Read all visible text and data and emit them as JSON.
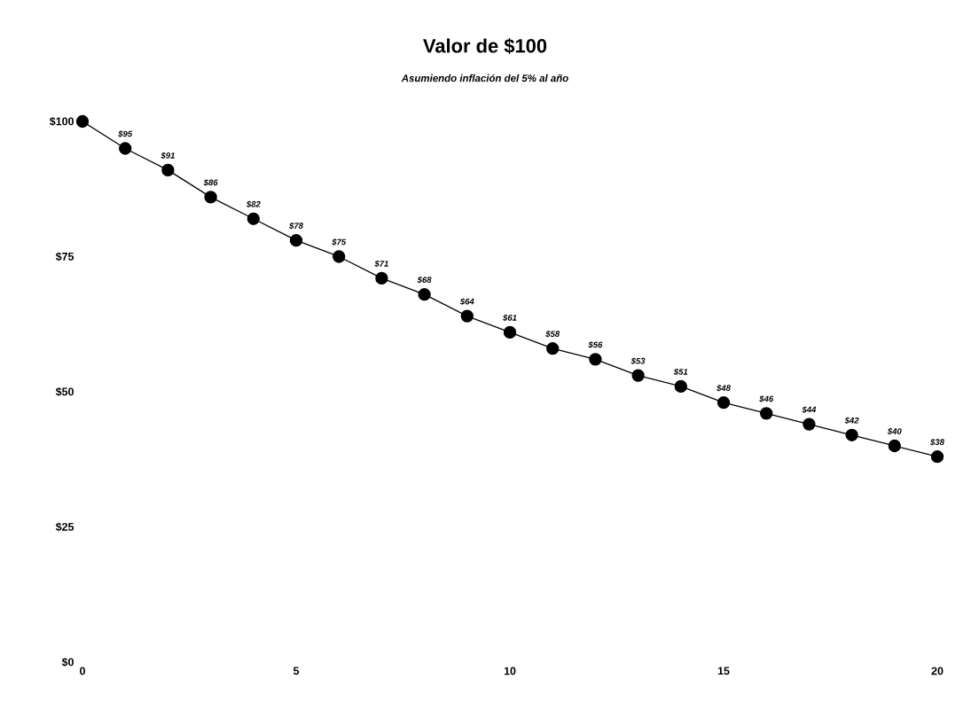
{
  "chart_data": {
    "type": "line",
    "title": "Valor de $100",
    "subtitle": "Asumiendo inflación del 5% al año",
    "x": [
      0,
      1,
      2,
      3,
      4,
      5,
      6,
      7,
      8,
      9,
      10,
      11,
      12,
      13,
      14,
      15,
      16,
      17,
      18,
      19,
      20
    ],
    "series": [
      {
        "color": "#000000",
        "values": [
          100,
          95,
          91,
          86,
          82,
          78,
          75,
          71,
          68,
          64,
          61,
          58,
          56,
          53,
          51,
          48,
          46,
          44,
          42,
          40,
          38
        ],
        "value_labels": [
          null,
          "$95",
          "$91",
          "$86",
          "$82",
          "$78",
          "$75",
          "$71",
          "$68",
          "$64",
          "$61",
          "$58",
          "$56",
          "$53",
          "$51",
          "$48",
          "$46",
          "$44",
          "$42",
          "$40",
          "$38"
        ]
      }
    ],
    "xlim": [
      0,
      20
    ],
    "xticks": [
      0,
      5,
      10,
      15,
      20
    ],
    "ylim": [
      0,
      100
    ],
    "yticks": [
      {
        "value": 0,
        "label": "$0"
      },
      {
        "value": 25,
        "label": "$25"
      },
      {
        "value": 50,
        "label": "$50"
      },
      {
        "value": 75,
        "label": "$75"
      },
      {
        "value": 100,
        "label": "$100"
      }
    ],
    "marker": "circle",
    "line_style": "solid"
  }
}
